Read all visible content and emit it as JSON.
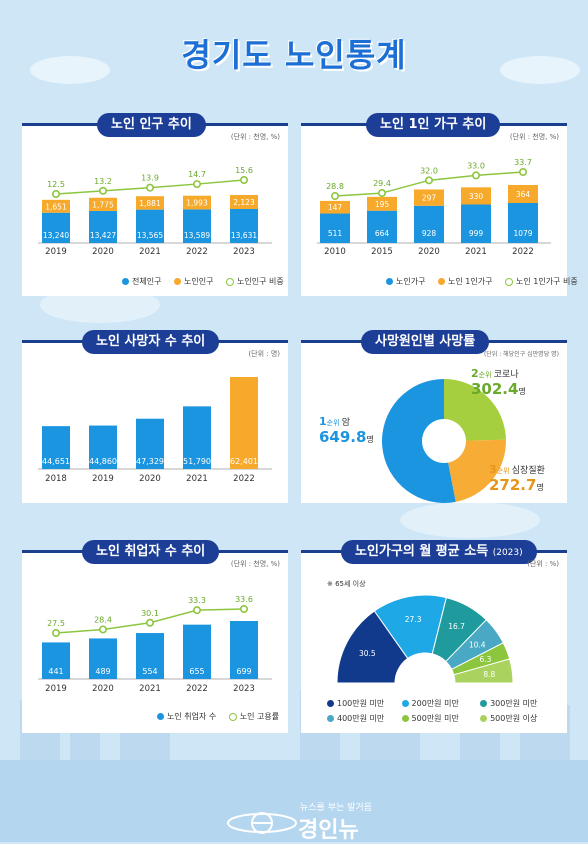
{
  "title": "경기도 노인통계",
  "colors": {
    "blue": "#1b95e0",
    "orange": "#f7a92b",
    "green": "#8cc63f",
    "navy": "#1c3e96"
  },
  "panel1": {
    "title": "노인 인구 추이",
    "unit": "(단위 : 천명, %)",
    "legend": [
      "전체인구",
      "노인인구",
      "노인인구 비중"
    ]
  },
  "panel2": {
    "title": "노인 1인 가구 추이",
    "unit": "(단위 : 천명, %)",
    "legend": [
      "노인가구",
      "노인 1인가구",
      "노인 1인가구 비중"
    ]
  },
  "panel3": {
    "title": "노인 사망자 수 추이",
    "unit": "(단위 : 명)"
  },
  "panel4": {
    "title": "사망원인별 사망률",
    "unit": "(단위 : 해당인구 십만명당 명)",
    "rank_suffix": "순위",
    "per": "명"
  },
  "panel5": {
    "title": "노인 취업자 수 추이",
    "unit": "(단위 : 천명, %)",
    "legend": [
      "노인 취업자 수",
      "노인 고용률"
    ]
  },
  "panel6": {
    "title": "노인가구의 월 평균 소득",
    "title_year": "(2023)",
    "unit": "(단위 : %)",
    "note": "※ 65세 이상",
    "legend": [
      "100만원 미만",
      "200만원 미만",
      "300만원 미만",
      "400만원 미만",
      "500만원 미만",
      "500만원 이상"
    ]
  },
  "logo": {
    "tagline": "뉴스를 부는 발거음",
    "name": "경인뉴"
  },
  "chart_data": [
    {
      "type": "bar",
      "categories": [
        "2019",
        "2020",
        "2021",
        "2022",
        "2023"
      ],
      "series": [
        {
          "name": "전체인구",
          "values": [
            13240,
            13427,
            13565,
            13589,
            13631
          ]
        },
        {
          "name": "노인인구",
          "values": [
            1651,
            1775,
            1881,
            1993,
            2123
          ]
        },
        {
          "name": "노인인구 비중",
          "values": [
            12.5,
            13.2,
            13.9,
            14.7,
            15.6
          ]
        }
      ],
      "labels": {
        "total": [
          "13,240",
          "13,427",
          "13,565",
          "13,589",
          "13,631"
        ],
        "elderly": [
          "1,651",
          "1,775",
          "1,881",
          "1,993",
          "2,123"
        ],
        "ratio": [
          "12.5",
          "13.2",
          "13.9",
          "14.7",
          "15.6"
        ]
      }
    },
    {
      "type": "bar",
      "categories": [
        "2010",
        "2015",
        "2020",
        "2021",
        "2022"
      ],
      "series": [
        {
          "name": "노인가구",
          "values": [
            511,
            664,
            928,
            999,
            1079
          ]
        },
        {
          "name": "노인 1인가구",
          "values": [
            147,
            195,
            297,
            330,
            364
          ]
        },
        {
          "name": "노인 1인가구 비중",
          "values": [
            28.8,
            29.4,
            32.0,
            33.0,
            33.7
          ]
        }
      ],
      "labels": {
        "total": [
          "511",
          "664",
          "928",
          "999",
          "1079"
        ],
        "elderly": [
          "147",
          "195",
          "297",
          "330",
          "364"
        ],
        "ratio": [
          "28.8",
          "29.4",
          "32.0",
          "33.0",
          "33.7"
        ]
      }
    },
    {
      "type": "bar",
      "categories": [
        "2018",
        "2019",
        "2020",
        "2021",
        "2022"
      ],
      "values": [
        44651,
        44860,
        47329,
        51790,
        62401
      ],
      "labels": [
        "44,651",
        "44,860",
        "47,329",
        "51,790",
        "62,401"
      ]
    },
    {
      "type": "pie",
      "categories": [
        "암",
        "코로나",
        "심장질환"
      ],
      "ranks": [
        "1",
        "2",
        "3"
      ],
      "values": [
        649.8,
        302.4,
        272.7
      ],
      "labels": [
        "649.8",
        "302.4",
        "272.7"
      ]
    },
    {
      "type": "bar",
      "categories": [
        "2019",
        "2020",
        "2021",
        "2022",
        "2023"
      ],
      "series": [
        {
          "name": "노인 취업자 수",
          "values": [
            441,
            489,
            554,
            655,
            699
          ]
        },
        {
          "name": "노인 고용률",
          "values": [
            27.5,
            28.4,
            30.1,
            33.3,
            33.6
          ]
        }
      ],
      "labels": {
        "bars": [
          "441",
          "489",
          "554",
          "655",
          "699"
        ],
        "ratio": [
          "27.5",
          "28.4",
          "30.1",
          "33.3",
          "33.6"
        ]
      }
    },
    {
      "type": "pie",
      "categories": [
        "100만원 미만",
        "200만원 미만",
        "300만원 미만",
        "400만원 미만",
        "500만원 미만",
        "500만원 이상"
      ],
      "values": [
        30.5,
        27.3,
        16.7,
        10.4,
        6.3,
        8.8
      ],
      "labels": [
        "30.5",
        "27.3",
        "16.7",
        "10.4",
        "6.3",
        "8.8"
      ],
      "colors": [
        "#123a8c",
        "#1ea8e6",
        "#1f9b9e",
        "#49a9c4",
        "#8cc63f",
        "#a9d35e"
      ]
    }
  ]
}
